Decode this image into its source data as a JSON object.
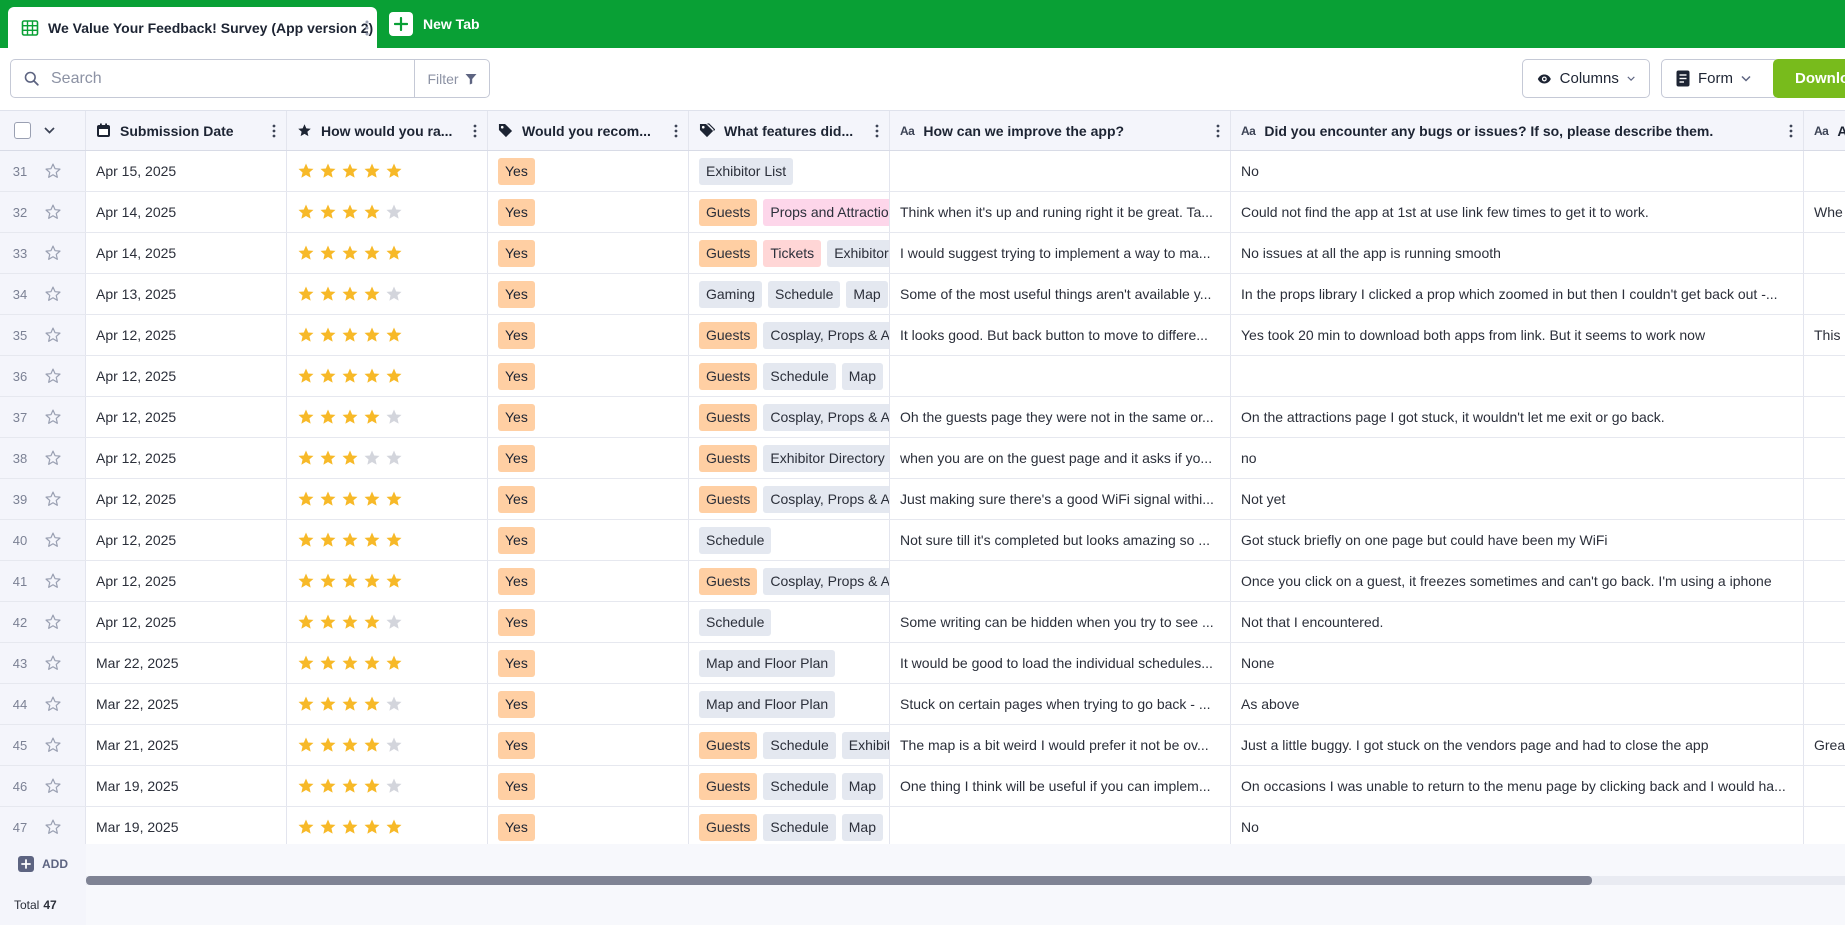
{
  "tabs": {
    "active_title": "We Value Your Feedback! Survey (App version 2)",
    "new_tab_label": "New Tab"
  },
  "toolbar": {
    "search_placeholder": "Search",
    "filter_label": "Filter",
    "columns_label": "Columns",
    "form_label": "Form",
    "download_label": "Download"
  },
  "columns": {
    "submission_date": "Submission Date",
    "rating": "How would you ra...",
    "recommend": "Would you recom...",
    "features": "What features did...",
    "improve": "How can we improve the app?",
    "bugs": "Did you encounter any bugs or issues? If so, please describe them.",
    "last": "A"
  },
  "colors": {
    "topbar": "#09a035",
    "download": "#78bb1c",
    "star_filled": "#f7b928",
    "star_empty": "#d3d5dc"
  },
  "rows": [
    {
      "num": "31",
      "date": "Apr 15, 2025",
      "rating": 5,
      "recommend": "Yes",
      "features": [
        {
          "t": "Exhibitor List",
          "c": "gray"
        }
      ],
      "improve": "",
      "bugs": "No",
      "last": ""
    },
    {
      "num": "32",
      "date": "Apr 14, 2025",
      "rating": 4,
      "recommend": "Yes",
      "features": [
        {
          "t": "Guests",
          "c": "guests"
        },
        {
          "t": "Props and Attractions",
          "c": "pink"
        }
      ],
      "improve": "Think when it's up and runing right it be great. Ta...",
      "bugs": "Could not find the app at 1st at use link few times to get it to work.",
      "last": "Whe"
    },
    {
      "num": "33",
      "date": "Apr 14, 2025",
      "rating": 5,
      "recommend": "Yes",
      "features": [
        {
          "t": "Guests",
          "c": "guests"
        },
        {
          "t": "Tickets",
          "c": "red"
        },
        {
          "t": "Exhibitor",
          "c": "gray"
        }
      ],
      "improve": "I would suggest trying to implement a way to ma...",
      "bugs": "No issues at all the app is running smooth",
      "last": ""
    },
    {
      "num": "34",
      "date": "Apr 13, 2025",
      "rating": 4,
      "recommend": "Yes",
      "features": [
        {
          "t": "Gaming",
          "c": "gray"
        },
        {
          "t": "Schedule",
          "c": "gray"
        },
        {
          "t": "Map",
          "c": "gray"
        }
      ],
      "improve": "Some of the most useful things aren't available y...",
      "bugs": "In the props library I clicked a prop which zoomed in but then I couldn't get back out -...",
      "last": ""
    },
    {
      "num": "35",
      "date": "Apr 12, 2025",
      "rating": 5,
      "recommend": "Yes",
      "features": [
        {
          "t": "Guests",
          "c": "guests"
        },
        {
          "t": "Cosplay, Props & Attractions",
          "c": "gray"
        }
      ],
      "improve": "It looks good. But back button to move to differe...",
      "bugs": "Yes took 20 min to download both apps from link. But it seems to work now",
      "last": "This"
    },
    {
      "num": "36",
      "date": "Apr 12, 2025",
      "rating": 5,
      "recommend": "Yes",
      "features": [
        {
          "t": "Guests",
          "c": "guests"
        },
        {
          "t": "Schedule",
          "c": "gray"
        },
        {
          "t": "Map",
          "c": "gray"
        }
      ],
      "improve": "",
      "bugs": "",
      "last": ""
    },
    {
      "num": "37",
      "date": "Apr 12, 2025",
      "rating": 4,
      "recommend": "Yes",
      "features": [
        {
          "t": "Guests",
          "c": "guests"
        },
        {
          "t": "Cosplay, Props & Attractions",
          "c": "gray"
        }
      ],
      "improve": "Oh the guests page they were not in the same or...",
      "bugs": "On the attractions page I got stuck, it wouldn't let me exit or go back.",
      "last": ""
    },
    {
      "num": "38",
      "date": "Apr 12, 2025",
      "rating": 3,
      "recommend": "Yes",
      "features": [
        {
          "t": "Guests",
          "c": "guests"
        },
        {
          "t": "Exhibitor Directory",
          "c": "gray"
        }
      ],
      "improve": "when you are on the guest page and it asks if yo...",
      "bugs": "no",
      "last": ""
    },
    {
      "num": "39",
      "date": "Apr 12, 2025",
      "rating": 5,
      "recommend": "Yes",
      "features": [
        {
          "t": "Guests",
          "c": "guests"
        },
        {
          "t": "Cosplay, Props & Attractions",
          "c": "gray"
        }
      ],
      "improve": "Just making sure there's a good WiFi signal withi...",
      "bugs": "Not yet",
      "last": ""
    },
    {
      "num": "40",
      "date": "Apr 12, 2025",
      "rating": 5,
      "recommend": "Yes",
      "features": [
        {
          "t": "Schedule",
          "c": "gray"
        }
      ],
      "improve": "Not sure till it's completed but looks amazing so ...",
      "bugs": "Got stuck briefly on one page but could have been my WiFi",
      "last": ""
    },
    {
      "num": "41",
      "date": "Apr 12, 2025",
      "rating": 5,
      "recommend": "Yes",
      "features": [
        {
          "t": "Guests",
          "c": "guests"
        },
        {
          "t": "Cosplay, Props & Attractions",
          "c": "gray"
        }
      ],
      "improve": "",
      "bugs": "Once you click on a guest, it freezes sometimes and can't go back. I'm using a iphone",
      "last": ""
    },
    {
      "num": "42",
      "date": "Apr 12, 2025",
      "rating": 4,
      "recommend": "Yes",
      "features": [
        {
          "t": "Schedule",
          "c": "gray"
        }
      ],
      "improve": "Some writing can be hidden when you try to see ...",
      "bugs": "Not that I encountered.",
      "last": ""
    },
    {
      "num": "43",
      "date": "Mar 22, 2025",
      "rating": 5,
      "recommend": "Yes",
      "features": [
        {
          "t": "Map and Floor Plan",
          "c": "gray"
        }
      ],
      "improve": "It would be good to load the individual schedules...",
      "bugs": "None",
      "last": ""
    },
    {
      "num": "44",
      "date": "Mar 22, 2025",
      "rating": 4,
      "recommend": "Yes",
      "features": [
        {
          "t": "Map and Floor Plan",
          "c": "gray"
        }
      ],
      "improve": "Stuck on certain pages when trying to go back - ...",
      "bugs": "As above",
      "last": ""
    },
    {
      "num": "45",
      "date": "Mar 21, 2025",
      "rating": 4,
      "recommend": "Yes",
      "features": [
        {
          "t": "Guests",
          "c": "guests"
        },
        {
          "t": "Schedule",
          "c": "gray"
        },
        {
          "t": "Exhibitor",
          "c": "gray"
        }
      ],
      "improve": "The map is a bit weird I would prefer it not be ov...",
      "bugs": "Just a little buggy. I got stuck on the vendors page and had to close the app",
      "last": "Grea"
    },
    {
      "num": "46",
      "date": "Mar 19, 2025",
      "rating": 4,
      "recommend": "Yes",
      "features": [
        {
          "t": "Guests",
          "c": "guests"
        },
        {
          "t": "Schedule",
          "c": "gray"
        },
        {
          "t": "Map",
          "c": "gray"
        }
      ],
      "improve": "One thing I think will be useful if you can implem...",
      "bugs": "On occasions I was unable to return to the menu page by clicking back and I would ha...",
      "last": ""
    },
    {
      "num": "47",
      "date": "Mar 19, 2025",
      "rating": 5,
      "recommend": "Yes",
      "features": [
        {
          "t": "Guests",
          "c": "guests"
        },
        {
          "t": "Schedule",
          "c": "gray"
        },
        {
          "t": "Map",
          "c": "gray"
        }
      ],
      "improve": "",
      "bugs": "No",
      "last": ""
    }
  ],
  "footer": {
    "add_label": "ADD",
    "total_label": "Total",
    "total_value": "47"
  }
}
